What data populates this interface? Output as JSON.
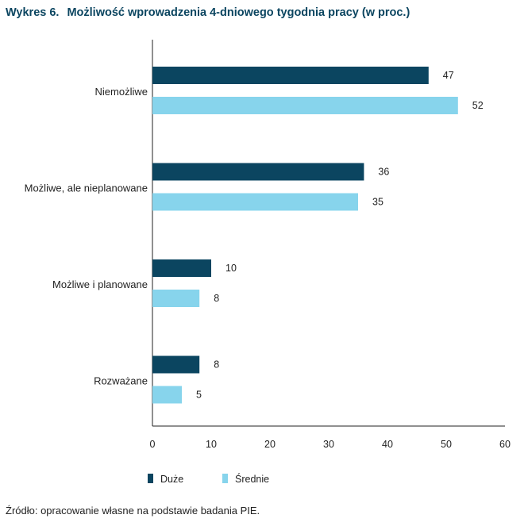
{
  "title": {
    "number": "Wykres 6.",
    "text": "Możliwość wprowadzenia 4-dniowego tygodnia pracy (w proc.)"
  },
  "source": "Źródło: opracowanie własne na podstawie badania PIE.",
  "colors": {
    "duze": "#0b4560",
    "srednie": "#87d4ec",
    "axis": "#222222"
  },
  "chart_data": {
    "type": "bar",
    "orientation": "horizontal",
    "categories": [
      "Niemożliwe",
      "Możliwe, ale nieplanowane",
      "Możliwe i planowane",
      "Rozważane"
    ],
    "series": [
      {
        "name": "Duże",
        "values": [
          47,
          36,
          10,
          8
        ]
      },
      {
        "name": "Średnie",
        "values": [
          52,
          35,
          8,
          5
        ]
      }
    ],
    "xlim": [
      0,
      60
    ],
    "xticks": [
      0,
      10,
      20,
      30,
      40,
      50,
      60
    ],
    "grid": false,
    "legend_position": "bottom-left"
  }
}
